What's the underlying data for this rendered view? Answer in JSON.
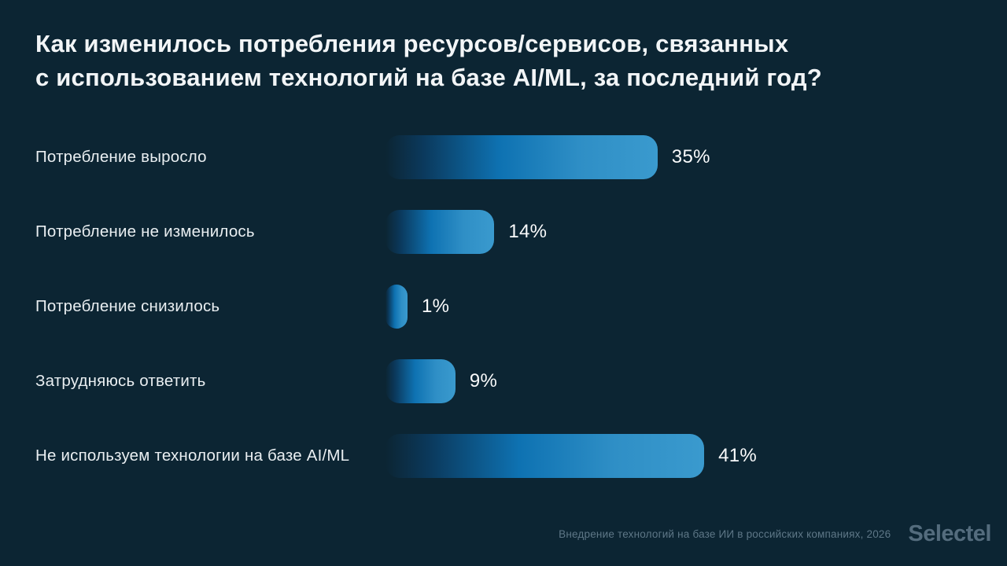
{
  "title": {
    "line1": "Как изменилось потребления ресурсов/сервисов, связанных",
    "line2": "с использованием технологий на базе AI/ML, за последний год?"
  },
  "chart_data": {
    "type": "bar",
    "orientation": "horizontal",
    "title": "Как изменилось потребления ресурсов/сервисов, связанных с использованием технологий на базе AI/ML, за последний год?",
    "categories": [
      "Потребление выросло",
      "Потребление не изменилось",
      "Потребление снизилось",
      "Затрудняюсь ответить",
      "Не используем технологии на базе AI/ML"
    ],
    "values": [
      35,
      14,
      1,
      9,
      41
    ],
    "value_labels": [
      "35%",
      "14%",
      "1%",
      "9%",
      "41%"
    ],
    "xlabel": "",
    "ylabel": "",
    "xlim": [
      0,
      41
    ],
    "grid": false,
    "legend": "none",
    "bar_color_gradient": [
      "#0C2533",
      "#0E72B2",
      "#3A9ACE"
    ]
  },
  "footer": {
    "source": "Внедрение технологий на базе ИИ в российских компаниях, 2026",
    "brand": "Selectel"
  },
  "colors": {
    "background": "#0C2533",
    "title_text": "#F2F5F7",
    "label_text": "#E9EEF1",
    "value_text": "#FAFBFC",
    "footer_text": "#5E7787",
    "brand_text": "#546C7D"
  }
}
